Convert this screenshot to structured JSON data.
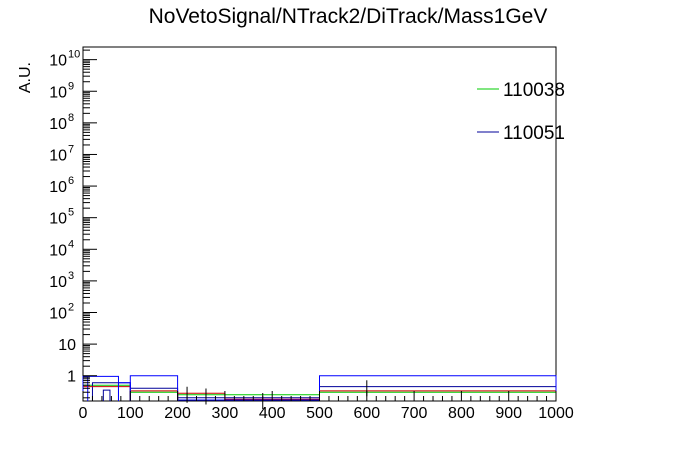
{
  "chart_data": {
    "type": "line",
    "title": "NoVetoSignal/NTrack2/DiTrack/Mass1GeV",
    "ylabel": "A.U.",
    "xlabel": "",
    "xlim": [
      0,
      1000
    ],
    "ylim_log10": [
      -0.8,
      10.4
    ],
    "y_log_scale": true,
    "grid": false,
    "legend_position": "top-right",
    "x_ticks": [
      "0",
      "100",
      "200",
      "300",
      "400",
      "500",
      "600",
      "700",
      "800",
      "900",
      "1000"
    ],
    "y_ticks": [
      {
        "base": "1",
        "exp": ""
      },
      {
        "base": "10",
        "exp": ""
      },
      {
        "base": "10",
        "exp": "2"
      },
      {
        "base": "10",
        "exp": "3"
      },
      {
        "base": "10",
        "exp": "4"
      },
      {
        "base": "10",
        "exp": "5"
      },
      {
        "base": "10",
        "exp": "6"
      },
      {
        "base": "10",
        "exp": "7"
      },
      {
        "base": "10",
        "exp": "8"
      },
      {
        "base": "10",
        "exp": "9"
      },
      {
        "base": "10",
        "exp": "10"
      }
    ],
    "legend": [
      {
        "name": "110038",
        "color": "#00cc00"
      },
      {
        "name": "110051",
        "color": "#000099"
      }
    ],
    "series": [
      {
        "name": "110038",
        "color": "#00cc00",
        "bins": [
          [
            500,
            1000,
            0.3
          ],
          [
            200,
            500,
            0.25
          ],
          [
            100,
            200,
            0.3
          ],
          [
            0,
            100,
            0.5
          ]
        ]
      },
      {
        "name": "110051",
        "color": "#000099",
        "bins": [
          [
            500,
            1000,
            0.45
          ],
          [
            200,
            500,
            0.2
          ],
          [
            100,
            200,
            0.4
          ],
          [
            20,
            100,
            0.6
          ]
        ]
      },
      {
        "name": "",
        "color": "#cc0000",
        "bins": [
          [
            500,
            1000,
            0.33
          ],
          [
            300,
            500,
            0.18
          ],
          [
            200,
            300,
            0.28
          ],
          [
            100,
            200,
            0.33
          ],
          [
            0,
            100,
            0.45
          ]
        ]
      },
      {
        "name": "",
        "color": "#0000ff",
        "bins": [
          [
            500,
            1000,
            1.0
          ],
          [
            200,
            500,
            0.17
          ],
          [
            100,
            200,
            1.0
          ],
          [
            75,
            100,
            0.6
          ],
          [
            0,
            75,
            0.95
          ],
          [
            0,
            10,
            0.9
          ]
        ]
      }
    ]
  }
}
